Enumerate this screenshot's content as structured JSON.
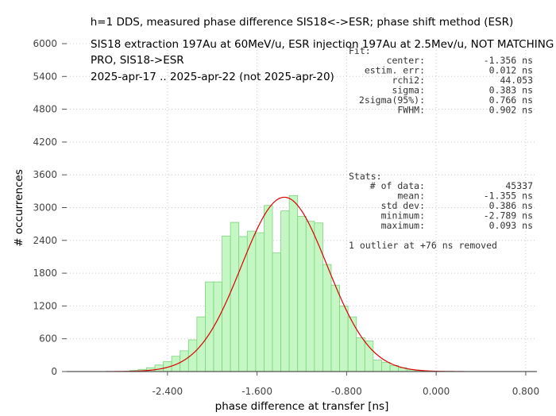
{
  "chart_data": {
    "type": "bar",
    "title": "h=1 DDS, measured phase difference SIS18<->ESR; phase shift method (ESR)",
    "subtitle_lines": [
      "SIS18 extraction 197Au at 60MeV/u, ESR injection 197Au at 2.5Mev/u, NOT MATCHING",
      "PRO, SIS18->ESR",
      "2025-apr-17 .. 2025-apr-22 (not 2025-apr-20)"
    ],
    "xlabel": "phase difference at transfer [ns]",
    "ylabel": "# occurrences",
    "xlim": [
      -3.3,
      0.9
    ],
    "ylim": [
      0,
      6000
    ],
    "xticks": [
      "-2.400",
      "-1.600",
      "-0.800",
      "0.000",
      "0.800"
    ],
    "yticks": [
      "0",
      "600",
      "1200",
      "1800",
      "2400",
      "3000",
      "3600",
      "4200",
      "4800",
      "5400",
      "6000"
    ],
    "bin_width": 0.075,
    "bins": [
      {
        "x": -2.7,
        "y": 20
      },
      {
        "x": -2.625,
        "y": 40
      },
      {
        "x": -2.55,
        "y": 70
      },
      {
        "x": -2.475,
        "y": 120
      },
      {
        "x": -2.4,
        "y": 180
      },
      {
        "x": -2.325,
        "y": 280
      },
      {
        "x": -2.25,
        "y": 380
      },
      {
        "x": -2.175,
        "y": 580
      },
      {
        "x": -2.1,
        "y": 1000
      },
      {
        "x": -2.025,
        "y": 1640
      },
      {
        "x": -1.95,
        "y": 1640
      },
      {
        "x": -1.875,
        "y": 2480
      },
      {
        "x": -1.8,
        "y": 2730
      },
      {
        "x": -1.725,
        "y": 2470
      },
      {
        "x": -1.65,
        "y": 2570
      },
      {
        "x": -1.575,
        "y": 2540
      },
      {
        "x": -1.5,
        "y": 3040
      },
      {
        "x": -1.425,
        "y": 2170
      },
      {
        "x": -1.35,
        "y": 2940
      },
      {
        "x": -1.275,
        "y": 3220
      },
      {
        "x": -1.2,
        "y": 2840
      },
      {
        "x": -1.125,
        "y": 2750
      },
      {
        "x": -1.05,
        "y": 2720
      },
      {
        "x": -0.975,
        "y": 1960
      },
      {
        "x": -0.9,
        "y": 1580
      },
      {
        "x": -0.825,
        "y": 1200
      },
      {
        "x": -0.75,
        "y": 1000
      },
      {
        "x": -0.675,
        "y": 620
      },
      {
        "x": -0.6,
        "y": 560
      },
      {
        "x": -0.525,
        "y": 210
      },
      {
        "x": -0.45,
        "y": 170
      },
      {
        "x": -0.375,
        "y": 110
      },
      {
        "x": -0.3,
        "y": 70
      },
      {
        "x": -0.225,
        "y": 30
      },
      {
        "x": -0.15,
        "y": 15
      }
    ],
    "fit": {
      "center": -1.356,
      "sigma": 0.383,
      "amplitude": 3190
    },
    "fit_box": {
      "heading": "Fit:",
      "rows": [
        {
          "label": "center:",
          "value": "-1.356 ns"
        },
        {
          "label": "estim. err:",
          "value": "0.012 ns"
        },
        {
          "label": "rchi2:",
          "value": "44.053"
        },
        {
          "label": "sigma:",
          "value": "0.383 ns"
        },
        {
          "label": "2sigma(95%):",
          "value": "0.766 ns"
        },
        {
          "label": "FWHM:",
          "value": "0.902 ns"
        }
      ]
    },
    "stats_box": {
      "heading": "Stats:",
      "rows": [
        {
          "label": "# of data:",
          "value": "45337"
        },
        {
          "label": "mean:",
          "value": "-1.355 ns"
        },
        {
          "label": "std dev:",
          "value": "0.386 ns"
        },
        {
          "label": "minimum:",
          "value": "-2.789 ns"
        },
        {
          "label": "maximum:",
          "value": "0.093 ns"
        }
      ],
      "note": "1 outlier at +76 ns removed"
    },
    "grid": true,
    "colors": {
      "bar_fill": "#c4f7c4",
      "bar_stroke": "#7fd27f",
      "fit_curve": "#dd0000",
      "grid": "#cccccc",
      "axis": "#555555"
    }
  }
}
